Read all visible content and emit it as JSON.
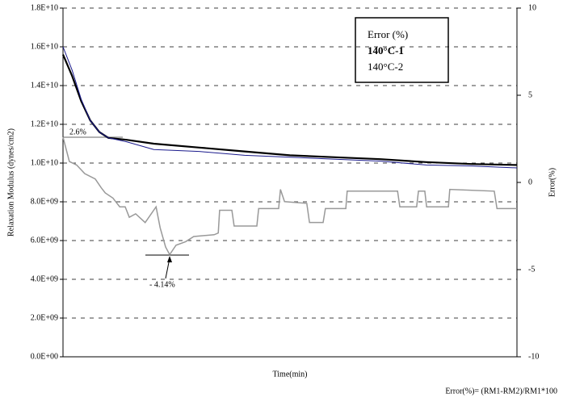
{
  "chart_data": {
    "type": "line",
    "ylabel": "Relaxation Modulus (dynes/cm2)",
    "y2label": "Error(%)",
    "xlabel": "Time(min)",
    "footnote": "Error(%)= (RM1-RM2)/RM1*100",
    "annotations": [
      "2.6%",
      "- 4.14%"
    ],
    "xlim": [
      0,
      100
    ],
    "ylim": [
      0,
      18000000000
    ],
    "yticks": [
      {
        "value": 0,
        "label": "0.0E+00"
      },
      {
        "value": 2000000000,
        "label": "2.0E+09"
      },
      {
        "value": 4000000000,
        "label": "4.0E+09"
      },
      {
        "value": 6000000000,
        "label": "6.0E+09"
      },
      {
        "value": 8000000000,
        "label": "8.0E+09"
      },
      {
        "value": 10000000000,
        "label": "1.0E+10"
      },
      {
        "value": 12000000000,
        "label": "1.2E+10"
      },
      {
        "value": 14000000000,
        "label": "1.4E+10"
      },
      {
        "value": 16000000000,
        "label": "1.6E+10"
      },
      {
        "value": 18000000000,
        "label": "1.8E+10"
      }
    ],
    "y2lim": [
      -10,
      10
    ],
    "y2ticks": [
      -10,
      -5,
      0,
      5,
      10
    ],
    "grid": true,
    "legend": "upper right",
    "series": [
      {
        "name": "Error (%)",
        "color": "#999999",
        "axis": "y2",
        "x": [
          0,
          1.4,
          3,
          4.8,
          7.1,
          8.4,
          9.3,
          11,
          12.5,
          13.7,
          14.6,
          16,
          18.1,
          20.5,
          21.4,
          22.6,
          23.5,
          24.9,
          27,
          28.8,
          33.3,
          34.2,
          34.5,
          37.2,
          37.7,
          42.7,
          43.1,
          47.5,
          47.9,
          48.8,
          53.7,
          54.3,
          57.3,
          57.8,
          62.3,
          62.6,
          73.7,
          74.2,
          77.9,
          78.3,
          79.7,
          80.1,
          84.9,
          85.2,
          95,
          95.6,
          100
        ],
        "values": [
          2.6,
          1.2,
          1.0,
          0.5,
          0.2,
          -0.3,
          -0.6,
          -0.9,
          -1.4,
          -1.4,
          -2.0,
          -1.8,
          -2.3,
          -1.4,
          -2.6,
          -3.7,
          -4.14,
          -3.6,
          -3.4,
          -3.1,
          -3.0,
          -2.9,
          -1.6,
          -1.6,
          -2.5,
          -2.5,
          -1.5,
          -1.5,
          -0.4,
          -1.1,
          -1.2,
          -2.3,
          -2.3,
          -1.5,
          -1.5,
          -0.5,
          -0.5,
          -1.4,
          -1.4,
          -0.5,
          -0.5,
          -1.4,
          -1.4,
          -0.4,
          -0.5,
          -1.5,
          -1.5
        ]
      },
      {
        "name": "140°C-1",
        "color": "#000000",
        "x": [
          0,
          2,
          4,
          6,
          8,
          10,
          14,
          20,
          30,
          40,
          50,
          60,
          70,
          80,
          90,
          100
        ],
        "values": [
          15600000000,
          14500000000,
          13200000000,
          12200000000,
          11600000000,
          11300000000,
          11200000000,
          11000000000,
          10800000000,
          10600000000,
          10400000000,
          10300000000,
          10200000000,
          10050000000,
          9950000000,
          9900000000
        ]
      },
      {
        "name": "140°C-2",
        "color": "#1a1a8c",
        "x": [
          0,
          2,
          4,
          6,
          8,
          10,
          14,
          20,
          30,
          40,
          50,
          60,
          70,
          80,
          90,
          100
        ],
        "values": [
          16000000000,
          14800000000,
          13300000000,
          12200000000,
          11600000000,
          11300000000,
          11100000000,
          10700000000,
          10600000000,
          10400000000,
          10300000000,
          10200000000,
          10100000000,
          9900000000,
          9850000000,
          9750000000
        ]
      }
    ]
  }
}
